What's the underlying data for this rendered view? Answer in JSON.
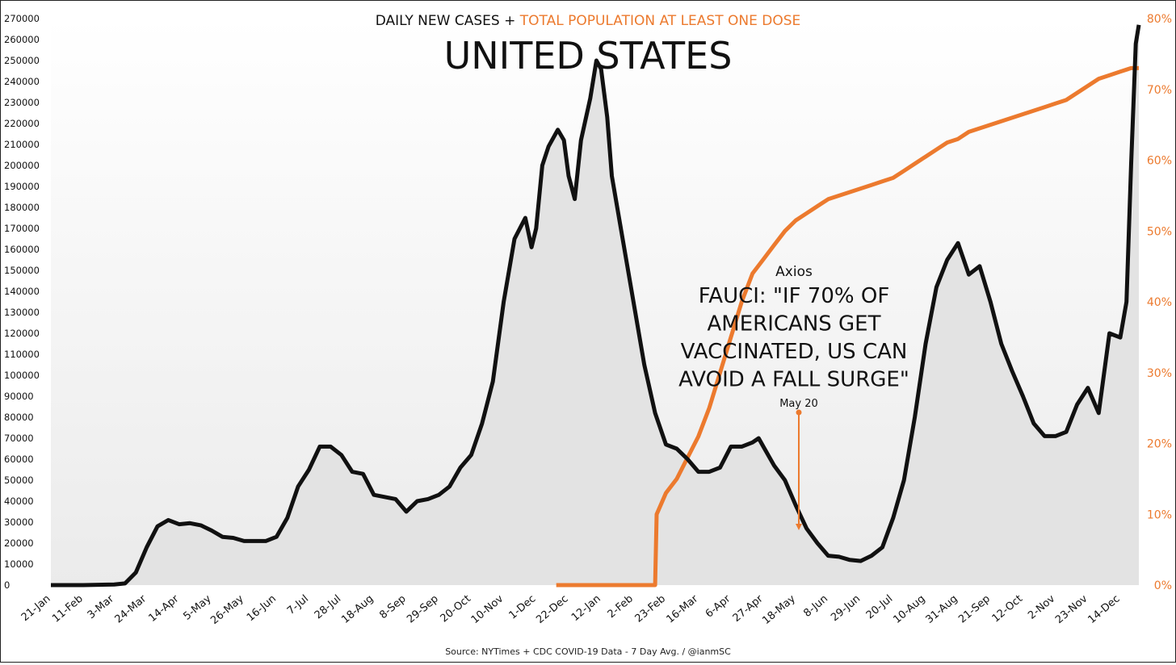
{
  "chart_data": {
    "type": "line",
    "title": "UNITED STATES",
    "subtitle_part1": "DAILY NEW CASES + ",
    "subtitle_part2": "TOTAL POPULATION AT LEAST ONE DOSE",
    "source": "Source: NYTimes + CDC COVID-19 Data - 7 Day Avg. / @ianmSC",
    "colors": {
      "cases": "#111111",
      "vaccination": "#ec7a2e",
      "area": "#e3e3e3",
      "subtitle": "#111111"
    },
    "x_tick_labels": [
      "21-Jan",
      "11-Feb",
      "3-Mar",
      "24-Mar",
      "14-Apr",
      "5-May",
      "26-May",
      "16-Jun",
      "7-Jul",
      "28-Jul",
      "18-Aug",
      "8-Sep",
      "29-Sep",
      "20-Oct",
      "10-Nov",
      "1-Dec",
      "22-Dec",
      "12-Jan",
      "2-Feb",
      "23-Feb",
      "16-Mar",
      "6-Apr",
      "27-Apr",
      "18-May",
      "8-Jun",
      "29-Jun",
      "20-Jul",
      "10-Aug",
      "31-Aug",
      "21-Sep",
      "12-Oct",
      "2-Nov",
      "23-Nov",
      "14-Dec"
    ],
    "y_left": {
      "min": 0,
      "max": 270000,
      "ticks": [
        "0",
        "10000",
        "20000",
        "30000",
        "40000",
        "50000",
        "60000",
        "70000",
        "80000",
        "90000",
        "100000",
        "110000",
        "120000",
        "130000",
        "140000",
        "150000",
        "160000",
        "170000",
        "180000",
        "190000",
        "200000",
        "210000",
        "220000",
        "230000",
        "240000",
        "250000",
        "260000",
        "270000"
      ]
    },
    "y_right": {
      "min": 0,
      "max": 80,
      "ticks": [
        "0%",
        "10%",
        "20%",
        "30%",
        "40%",
        "50%",
        "60%",
        "70%",
        "80%"
      ]
    },
    "series": [
      {
        "name": "DAILY NEW CASES",
        "axis": "left",
        "points": [
          [
            "21-Jan",
            0
          ],
          [
            "11-Feb",
            0
          ],
          [
            "3-Mar",
            300
          ],
          [
            "10-Mar",
            800
          ],
          [
            "17-Mar",
            6000
          ],
          [
            "24-Mar",
            18000
          ],
          [
            "31-Mar",
            28000
          ],
          [
            "7-Apr",
            31000
          ],
          [
            "14-Apr",
            29000
          ],
          [
            "21-Apr",
            29500
          ],
          [
            "28-Apr",
            28500
          ],
          [
            "5-May",
            26000
          ],
          [
            "12-May",
            23000
          ],
          [
            "19-May",
            22500
          ],
          [
            "26-May",
            21000
          ],
          [
            "2-Jun",
            21000
          ],
          [
            "9-Jun",
            21000
          ],
          [
            "16-Jun",
            23000
          ],
          [
            "23-Jun",
            32000
          ],
          [
            "30-Jun",
            47000
          ],
          [
            "7-Jul",
            55000
          ],
          [
            "14-Jul",
            66000
          ],
          [
            "21-Jul",
            66000
          ],
          [
            "28-Jul",
            62000
          ],
          [
            "4-Aug",
            54000
          ],
          [
            "11-Aug",
            53000
          ],
          [
            "18-Aug",
            43000
          ],
          [
            "25-Aug",
            42000
          ],
          [
            "1-Sep",
            41000
          ],
          [
            "8-Sep",
            35000
          ],
          [
            "15-Sep",
            40000
          ],
          [
            "22-Sep",
            41000
          ],
          [
            "29-Sep",
            43000
          ],
          [
            "6-Oct",
            47000
          ],
          [
            "13-Oct",
            56000
          ],
          [
            "20-Oct",
            62000
          ],
          [
            "27-Oct",
            77000
          ],
          [
            "3-Nov",
            97000
          ],
          [
            "10-Nov",
            135000
          ],
          [
            "17-Nov",
            165000
          ],
          [
            "24-Nov",
            175000
          ],
          [
            "28-Nov",
            161000
          ],
          [
            "1-Dec",
            170000
          ],
          [
            "5-Dec",
            200000
          ],
          [
            "9-Dec",
            209000
          ],
          [
            "15-Dec",
            217000
          ],
          [
            "19-Dec",
            212000
          ],
          [
            "22-Dec",
            195000
          ],
          [
            "26-Dec",
            184000
          ],
          [
            "30-Dec",
            212000
          ],
          [
            "5-Jan",
            232000
          ],
          [
            "9-Jan",
            250000
          ],
          [
            "12-Jan",
            246000
          ],
          [
            "16-Jan",
            223000
          ],
          [
            "19-Jan",
            195000
          ],
          [
            "26-Jan",
            165000
          ],
          [
            "2-Feb",
            135000
          ],
          [
            "9-Feb",
            105000
          ],
          [
            "16-Feb",
            82000
          ],
          [
            "23-Feb",
            67000
          ],
          [
            "2-Mar",
            65000
          ],
          [
            "9-Mar",
            60000
          ],
          [
            "16-Mar",
            54000
          ],
          [
            "23-Mar",
            54000
          ],
          [
            "30-Mar",
            56000
          ],
          [
            "6-Apr",
            66000
          ],
          [
            "13-Apr",
            66000
          ],
          [
            "20-Apr",
            68000
          ],
          [
            "24-Apr",
            70000
          ],
          [
            "27-Apr",
            66000
          ],
          [
            "4-May",
            57000
          ],
          [
            "11-May",
            50000
          ],
          [
            "18-May",
            38000
          ],
          [
            "25-May",
            27000
          ],
          [
            "1-Jun",
            20000
          ],
          [
            "8-Jun",
            14000
          ],
          [
            "15-Jun",
            13500
          ],
          [
            "22-Jun",
            12000
          ],
          [
            "29-Jun",
            11500
          ],
          [
            "6-Jul",
            14000
          ],
          [
            "13-Jul",
            18000
          ],
          [
            "20-Jul",
            32000
          ],
          [
            "27-Jul",
            50000
          ],
          [
            "3-Aug",
            80000
          ],
          [
            "10-Aug",
            115000
          ],
          [
            "17-Aug",
            142000
          ],
          [
            "24-Aug",
            155000
          ],
          [
            "31-Aug",
            163000
          ],
          [
            "7-Sep",
            148000
          ],
          [
            "14-Sep",
            152000
          ],
          [
            "21-Sep",
            135000
          ],
          [
            "28-Sep",
            115000
          ],
          [
            "5-Oct",
            102000
          ],
          [
            "12-Oct",
            90000
          ],
          [
            "19-Oct",
            77000
          ],
          [
            "26-Oct",
            71000
          ],
          [
            "2-Nov",
            71000
          ],
          [
            "9-Nov",
            73000
          ],
          [
            "16-Nov",
            86000
          ],
          [
            "23-Nov",
            94000
          ],
          [
            "30-Nov",
            82000
          ],
          [
            "7-Dec",
            120000
          ],
          [
            "14-Dec",
            118000
          ],
          [
            "18-Dec",
            135000
          ],
          [
            "21-Dec",
            200000
          ],
          [
            "24-Dec",
            258000
          ],
          [
            "26-Dec",
            267000
          ]
        ]
      },
      {
        "name": "TOTAL POPULATION AT LEAST ONE DOSE",
        "axis": "right",
        "points": [
          [
            "14-Dec",
            0
          ],
          [
            "12-Jan",
            0
          ],
          [
            "2-Feb",
            0
          ],
          [
            "16-Feb",
            0
          ],
          [
            "17-Feb",
            10
          ],
          [
            "23-Feb",
            13
          ],
          [
            "2-Mar",
            15
          ],
          [
            "9-Mar",
            18
          ],
          [
            "16-Mar",
            21
          ],
          [
            "23-Mar",
            25
          ],
          [
            "30-Mar",
            30
          ],
          [
            "6-Apr",
            35
          ],
          [
            "13-Apr",
            40
          ],
          [
            "20-Apr",
            44
          ],
          [
            "27-Apr",
            46
          ],
          [
            "4-May",
            48
          ],
          [
            "11-May",
            50
          ],
          [
            "18-May",
            51.5
          ],
          [
            "25-May",
            52.5
          ],
          [
            "1-Jun",
            53.5
          ],
          [
            "8-Jun",
            54.5
          ],
          [
            "15-Jun",
            55
          ],
          [
            "22-Jun",
            55.5
          ],
          [
            "29-Jun",
            56
          ],
          [
            "6-Jul",
            56.5
          ],
          [
            "13-Jul",
            57
          ],
          [
            "20-Jul",
            57.5
          ],
          [
            "27-Jul",
            58.5
          ],
          [
            "3-Aug",
            59.5
          ],
          [
            "10-Aug",
            60.5
          ],
          [
            "17-Aug",
            61.5
          ],
          [
            "24-Aug",
            62.5
          ],
          [
            "31-Aug",
            63
          ],
          [
            "7-Sep",
            64
          ],
          [
            "14-Sep",
            64.5
          ],
          [
            "21-Sep",
            65
          ],
          [
            "28-Sep",
            65.5
          ],
          [
            "5-Oct",
            66
          ],
          [
            "12-Oct",
            66.5
          ],
          [
            "19-Oct",
            67
          ],
          [
            "26-Oct",
            67.5
          ],
          [
            "2-Nov",
            68
          ],
          [
            "9-Nov",
            68.5
          ],
          [
            "16-Nov",
            69.5
          ],
          [
            "23-Nov",
            70.5
          ],
          [
            "30-Nov",
            71.5
          ],
          [
            "7-Dec",
            72
          ],
          [
            "14-Dec",
            72.5
          ],
          [
            "21-Dec",
            73
          ],
          [
            "26-Dec",
            73
          ]
        ]
      }
    ],
    "annotation": {
      "source_label": "Axios",
      "headline": [
        "FAUCI: \"IF 70% OF",
        "AMERICANS GET",
        "VACCINATED, US CAN",
        "AVOID A FALL SURGE\""
      ],
      "marker_label": "May 20",
      "marker_x": "20-May"
    },
    "grid": false,
    "legend": "none"
  }
}
